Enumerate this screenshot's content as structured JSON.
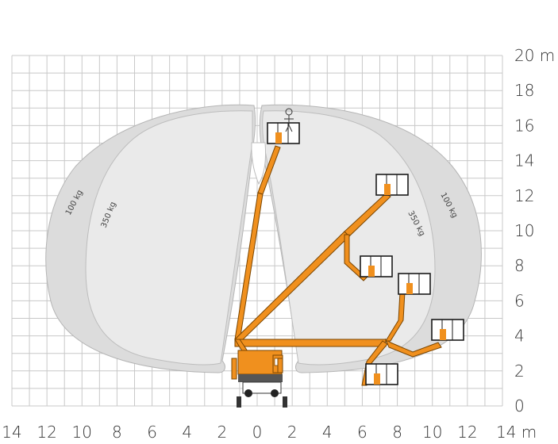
{
  "diagram": {
    "x_ticks": [
      "14",
      "12",
      "10",
      "8",
      "6",
      "4",
      "2",
      "0",
      "2",
      "4",
      "6",
      "8",
      "10",
      "12",
      "14 m"
    ],
    "y_ticks": [
      "0",
      "2",
      "4",
      "6",
      "8",
      "10",
      "12",
      "14",
      "16",
      "18",
      "20 m"
    ],
    "zone_labels": {
      "outer_left": "100 kg",
      "inner_left": "350 kg",
      "outer_right": "100 kg",
      "inner_right": "350 kg"
    },
    "colors": {
      "boom": "#f0901e",
      "boom_outline": "#7a4500",
      "zone_outer": "#dcdcdc",
      "zone_inner": "#eaeaea",
      "grid": "#c8c8c8",
      "platform": "#1a1a1a",
      "truck": "#555555"
    }
  },
  "chart_data": {
    "type": "working-range diagram",
    "x_ticks": [
      "14",
      "12",
      "10",
      "8",
      "6",
      "4",
      "2",
      "0",
      "2",
      "4",
      "6",
      "8",
      "10",
      "12",
      "14 m"
    ],
    "y_ticks": [
      "0",
      "2",
      "4",
      "6",
      "8",
      "10",
      "12",
      "14",
      "16",
      "18",
      "20 m"
    ],
    "zones": [
      "100 kg",
      "350 kg"
    ]
  }
}
